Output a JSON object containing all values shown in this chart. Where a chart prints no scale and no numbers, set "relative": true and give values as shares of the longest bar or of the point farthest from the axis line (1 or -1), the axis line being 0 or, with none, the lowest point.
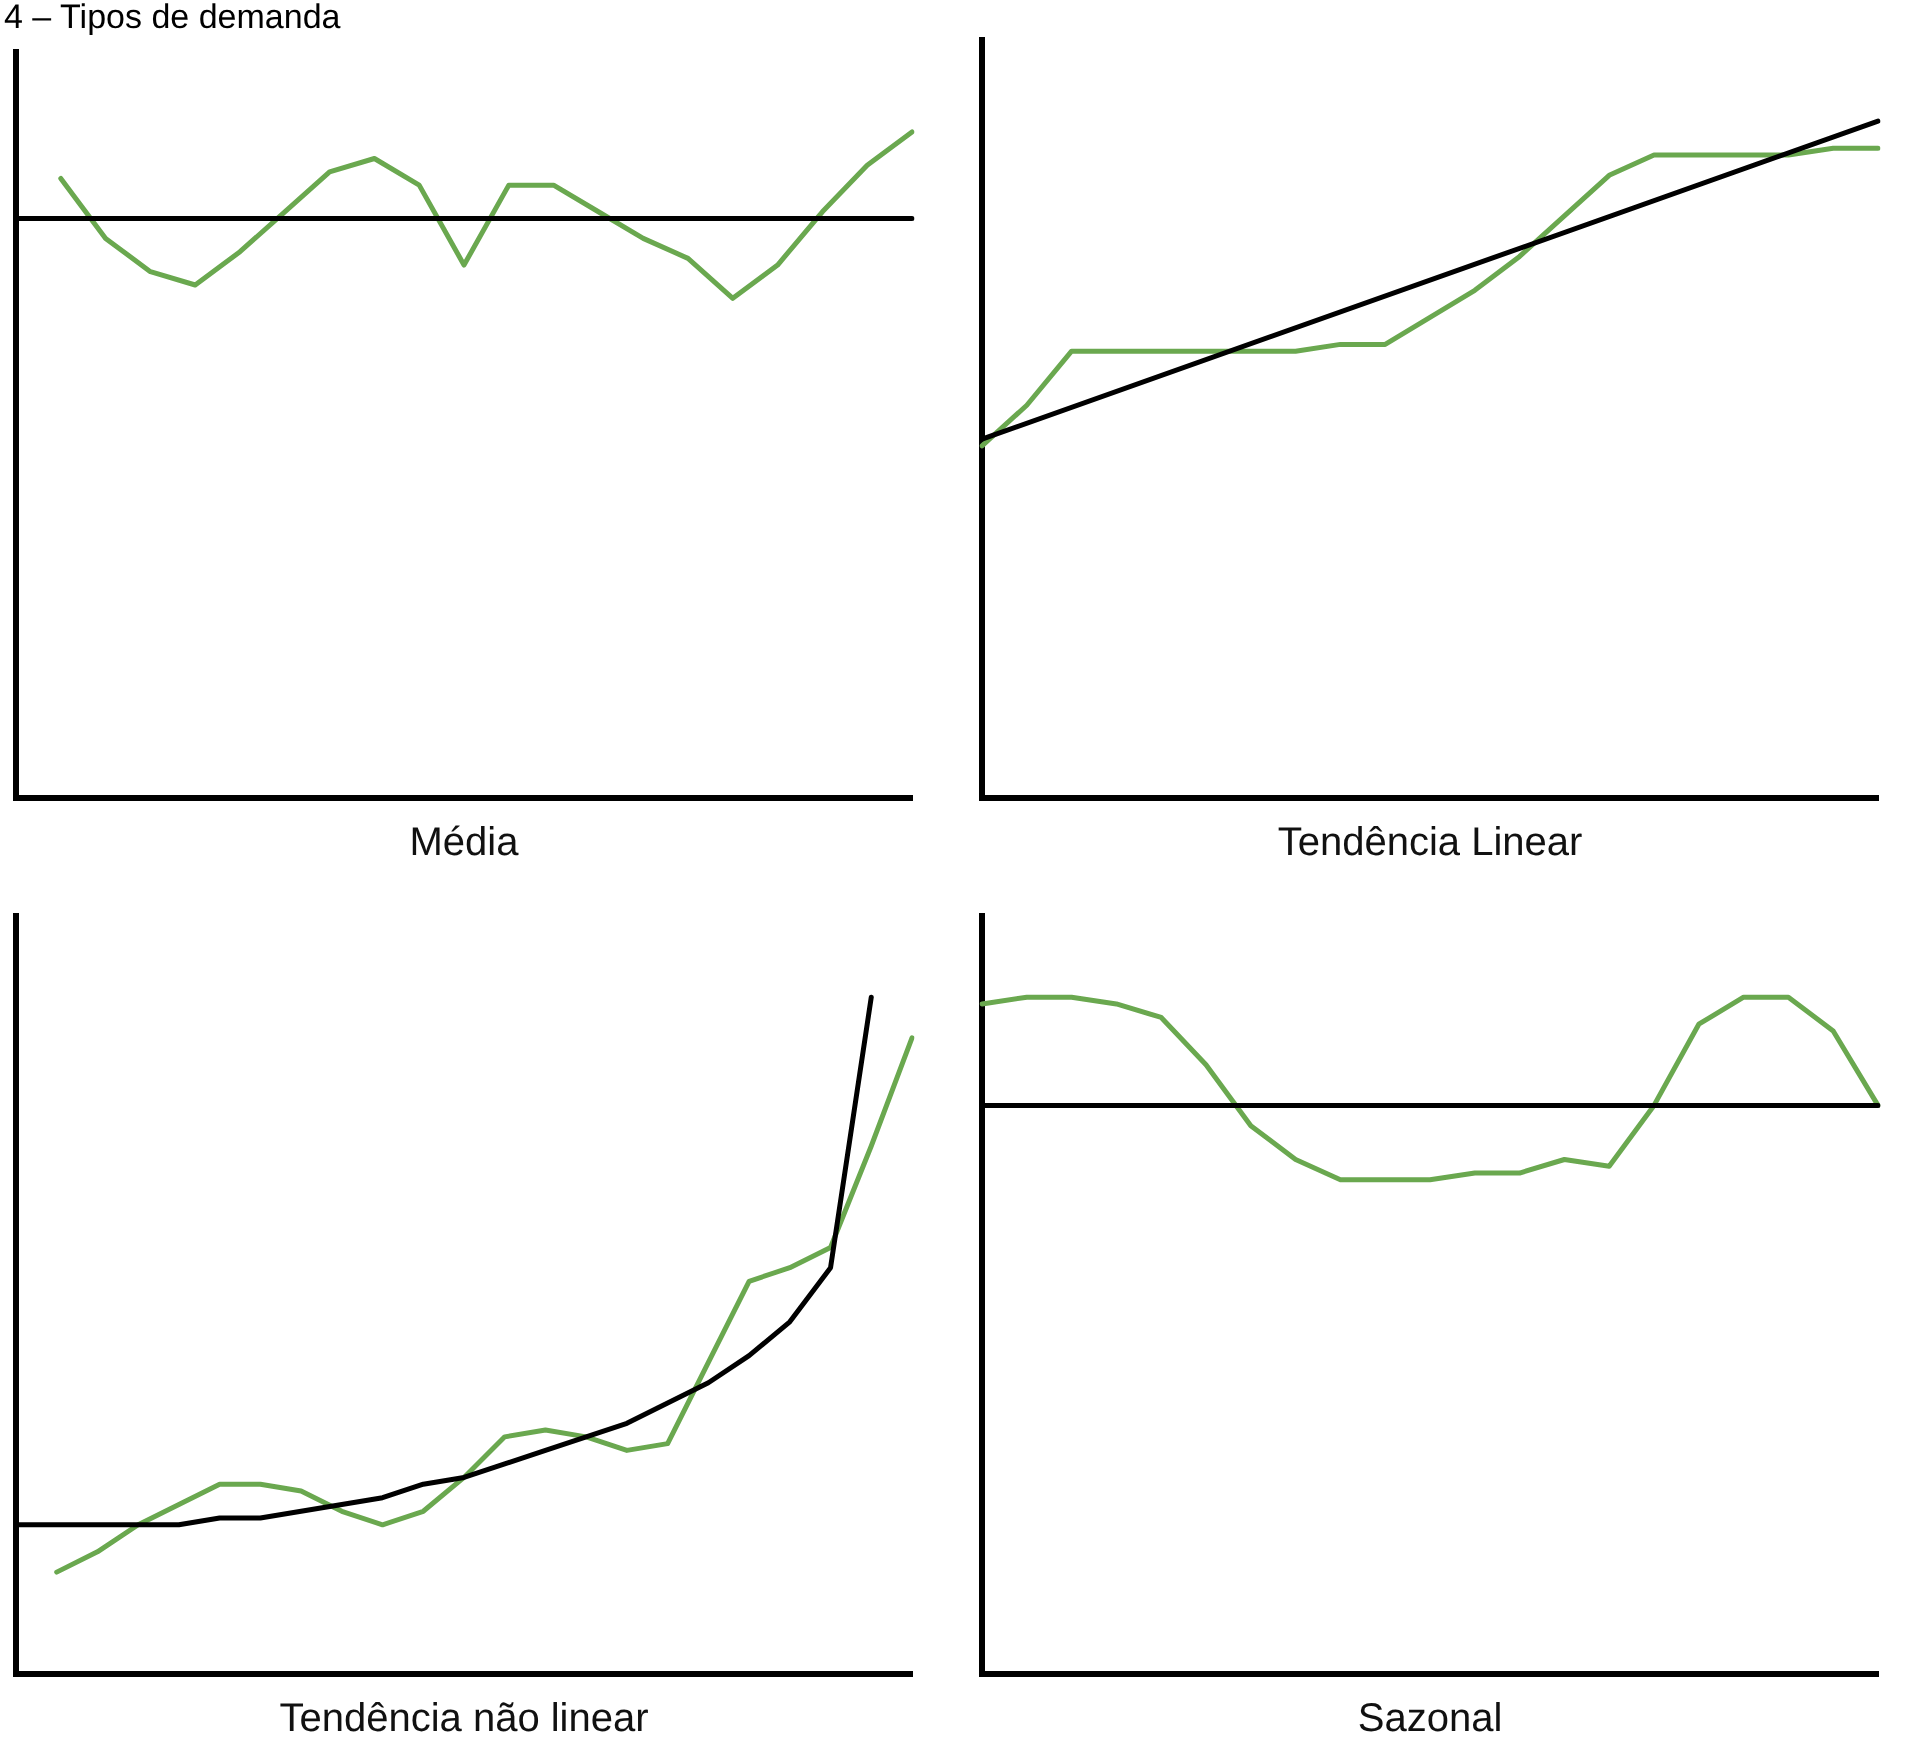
{
  "chart_data": [
    {
      "type": "line",
      "title": "4 – Tipos de demanda",
      "xlabel": "Média",
      "relative": true,
      "grid": false,
      "marker": "none",
      "categories": [
        null,
        null,
        null,
        null,
        null,
        null,
        null,
        null,
        null,
        null,
        null,
        null,
        null,
        null,
        null,
        null,
        null,
        null,
        null,
        null,
        null
      ],
      "series": [
        {
          "color": "#000000",
          "values": [
            0.87,
            null,
            null,
            null,
            null,
            null,
            null,
            null,
            null,
            null,
            null,
            null,
            null,
            null,
            null,
            null,
            null,
            null,
            null,
            null,
            0.87
          ]
        },
        {
          "color": "#6aa84f",
          "values": [
            null,
            0.93,
            0.84,
            0.79,
            0.77,
            0.82,
            0.88,
            0.94,
            0.96,
            0.92,
            0.8,
            0.92,
            0.92,
            0.88,
            0.84,
            0.81,
            0.75,
            0.8,
            0.88,
            0.95,
            1
          ]
        }
      ]
    },
    {
      "type": "line",
      "xlabel": "Tendência Linear",
      "relative": true,
      "grid": false,
      "marker": "none",
      "categories": [
        null,
        null,
        null,
        null,
        null,
        null,
        null,
        null,
        null,
        null,
        null,
        null,
        null,
        null,
        null,
        null,
        null,
        null,
        null,
        null,
        null
      ],
      "series": [
        {
          "color": "#000000",
          "values": [
            0.53,
            null,
            null,
            null,
            null,
            null,
            null,
            null,
            null,
            null,
            null,
            null,
            null,
            null,
            null,
            null,
            null,
            null,
            null,
            null,
            1
          ]
        },
        {
          "color": "#6aa84f",
          "values": [
            0.52,
            0.58,
            0.66,
            0.66,
            0.66,
            0.66,
            0.66,
            0.66,
            0.67,
            0.67,
            0.71,
            0.75,
            0.8,
            0.86,
            0.92,
            0.95,
            0.95,
            0.95,
            0.95,
            0.96,
            0.96
          ]
        }
      ]
    },
    {
      "type": "line",
      "xlabel": "Tendência não linear",
      "relative": true,
      "grid": false,
      "marker": "none",
      "categories": [
        null,
        null,
        null,
        null,
        null,
        null,
        null,
        null,
        null,
        null,
        null,
        null,
        null,
        null,
        null,
        null,
        null,
        null,
        null,
        null,
        null,
        null,
        null
      ],
      "series": [
        {
          "color": "#000000",
          "values": [
            0.22,
            0.22,
            0.22,
            0.22,
            0.22,
            0.23,
            0.23,
            0.24,
            0.25,
            0.26,
            0.28,
            0.29,
            0.31,
            0.33,
            0.35,
            0.37,
            0.4,
            0.43,
            0.47,
            0.52,
            0.6,
            1,
            null
          ]
        },
        {
          "color": "#6aa84f",
          "values": [
            null,
            0.15,
            0.18,
            0.22,
            0.25,
            0.28,
            0.28,
            0.27,
            0.24,
            0.22,
            0.24,
            0.29,
            0.35,
            0.36,
            0.35,
            0.33,
            0.34,
            0.46,
            0.58,
            0.6,
            0.63,
            0.78,
            0.94
          ]
        }
      ]
    },
    {
      "type": "line",
      "xlabel": "Sazonal",
      "relative": true,
      "grid": false,
      "marker": "none",
      "categories": [
        null,
        null,
        null,
        null,
        null,
        null,
        null,
        null,
        null,
        null,
        null,
        null,
        null,
        null,
        null,
        null,
        null,
        null,
        null,
        null,
        null
      ],
      "series": [
        {
          "color": "#000000",
          "values": [
            0.84,
            null,
            null,
            null,
            null,
            null,
            null,
            null,
            null,
            null,
            null,
            null,
            null,
            null,
            null,
            null,
            null,
            null,
            null,
            null,
            0.84
          ]
        },
        {
          "color": "#6aa84f",
          "values": [
            0.99,
            1,
            1,
            0.99,
            0.97,
            0.9,
            0.81,
            0.76,
            0.73,
            0.73,
            0.73,
            0.74,
            0.74,
            0.76,
            0.75,
            0.84,
            0.96,
            1,
            1,
            0.95,
            0.84
          ]
        }
      ]
    }
  ]
}
